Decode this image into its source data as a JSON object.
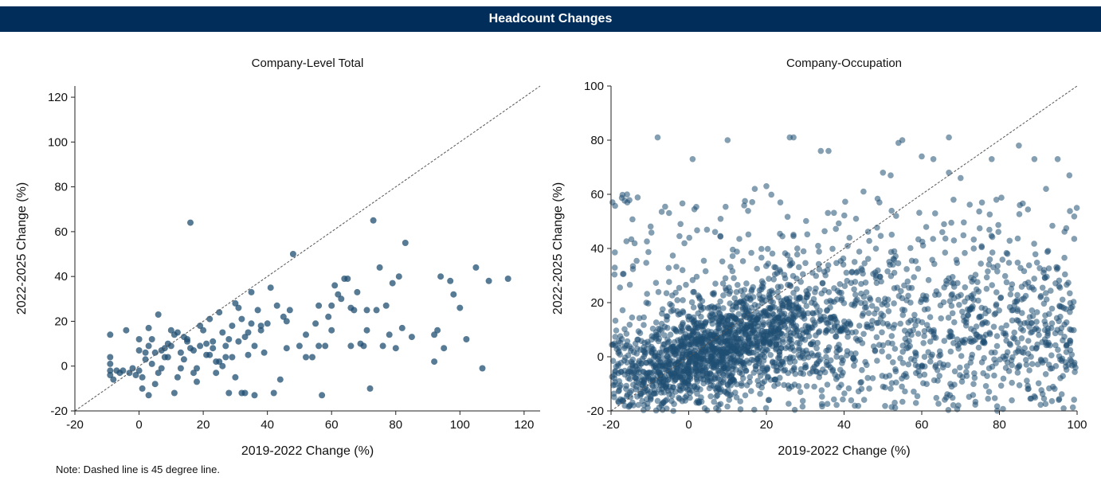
{
  "header": {
    "title": "Headcount Changes"
  },
  "note": "Note: Dashed line is 45 degree line.",
  "colors": {
    "banner": "#002D5A",
    "points": "#1F4E72",
    "ref_line": "#555555"
  },
  "chart_data": [
    {
      "type": "scatter",
      "title": "Company-Level Total",
      "xlabel": "2019-2022 Change (%)",
      "ylabel": "2022-2025 Change (%)",
      "xlim": [
        -20,
        125
      ],
      "ylim": [
        -20,
        125
      ],
      "xticks": [
        -20,
        0,
        20,
        40,
        60,
        80,
        100,
        120
      ],
      "yticks": [
        -20,
        0,
        20,
        40,
        60,
        80,
        100,
        120
      ],
      "reference_line": "45-degree dashed",
      "grid": false,
      "points": [
        [
          -9,
          14
        ],
        [
          -9,
          4
        ],
        [
          -9,
          1
        ],
        [
          -9,
          -2
        ],
        [
          -9,
          -4
        ],
        [
          -8,
          -6
        ],
        [
          -7,
          -2
        ],
        [
          -6,
          -3
        ],
        [
          -5,
          -2
        ],
        [
          -4,
          16
        ],
        [
          -3,
          -3
        ],
        [
          -2,
          -1
        ],
        [
          -1,
          -4
        ],
        [
          0,
          -2
        ],
        [
          1,
          -5
        ],
        [
          2,
          3
        ],
        [
          3,
          17
        ],
        [
          4,
          12
        ],
        [
          5,
          -8
        ],
        [
          6,
          23
        ],
        [
          7,
          7
        ],
        [
          8,
          8
        ],
        [
          9,
          10
        ],
        [
          10,
          16
        ],
        [
          11,
          14
        ],
        [
          12,
          15
        ],
        [
          13,
          6
        ],
        [
          14,
          3
        ],
        [
          15,
          11
        ],
        [
          16,
          64
        ],
        [
          17,
          7
        ],
        [
          18,
          -1
        ],
        [
          19,
          18
        ],
        [
          20,
          16
        ],
        [
          21,
          10
        ],
        [
          22,
          21
        ],
        [
          23,
          8
        ],
        [
          24,
          -3
        ],
        [
          25,
          24
        ],
        [
          26,
          15
        ],
        [
          27,
          4
        ],
        [
          28,
          -12
        ],
        [
          29,
          18
        ],
        [
          30,
          28
        ],
        [
          31,
          26
        ],
        [
          32,
          21
        ],
        [
          33,
          13
        ],
        [
          34,
          15
        ],
        [
          35,
          33
        ],
        [
          36,
          9
        ],
        [
          37,
          25
        ],
        [
          38,
          18
        ],
        [
          39,
          6
        ],
        [
          40,
          19
        ],
        [
          41,
          35
        ],
        [
          42,
          -12
        ],
        [
          43,
          27
        ],
        [
          44,
          -6
        ],
        [
          45,
          22
        ],
        [
          46,
          8
        ],
        [
          47,
          25
        ],
        [
          48,
          50
        ],
        [
          50,
          9
        ],
        [
          52,
          14
        ],
        [
          54,
          4
        ],
        [
          55,
          19
        ],
        [
          56,
          27
        ],
        [
          57,
          -13
        ],
        [
          58,
          9
        ],
        [
          59,
          22
        ],
        [
          60,
          27
        ],
        [
          61,
          36
        ],
        [
          62,
          32
        ],
        [
          63,
          30
        ],
        [
          64,
          39
        ],
        [
          65,
          39
        ],
        [
          66,
          9
        ],
        [
          67,
          25
        ],
        [
          68,
          33
        ],
        [
          69,
          10
        ],
        [
          70,
          9
        ],
        [
          71,
          25
        ],
        [
          72,
          -10
        ],
        [
          73,
          65
        ],
        [
          74,
          25
        ],
        [
          75,
          44
        ],
        [
          76,
          9
        ],
        [
          77,
          27
        ],
        [
          78,
          14
        ],
        [
          79,
          37
        ],
        [
          80,
          8
        ],
        [
          81,
          40
        ],
        [
          82,
          17
        ],
        [
          83,
          55
        ],
        [
          85,
          13
        ],
        [
          92,
          2
        ],
        [
          93,
          16
        ],
        [
          94,
          40
        ],
        [
          95,
          8
        ],
        [
          97,
          38
        ],
        [
          98,
          32
        ],
        [
          100,
          26
        ],
        [
          102,
          12
        ],
        [
          105,
          44
        ],
        [
          107,
          -1
        ],
        [
          109,
          38
        ],
        [
          115,
          39
        ],
        [
          0,
          12
        ],
        [
          2,
          6
        ],
        [
          4,
          1
        ],
        [
          6,
          -3
        ],
        [
          8,
          4
        ],
        [
          10,
          9
        ],
        [
          12,
          -5
        ],
        [
          14,
          13
        ],
        [
          18,
          -7
        ],
        [
          22,
          5
        ],
        [
          26,
          0
        ],
        [
          30,
          -5
        ],
        [
          34,
          5
        ],
        [
          38,
          16
        ],
        [
          1,
          -10
        ],
        [
          3,
          9
        ],
        [
          5,
          6
        ],
        [
          7,
          -1
        ],
        [
          9,
          4
        ],
        [
          13,
          -1
        ],
        [
          15,
          12
        ],
        [
          17,
          -3
        ],
        [
          19,
          9
        ],
        [
          21,
          5
        ],
        [
          23,
          11
        ],
        [
          25,
          2
        ],
        [
          27,
          9
        ],
        [
          29,
          4
        ],
        [
          31,
          11
        ],
        [
          33,
          -12
        ],
        [
          35,
          19
        ],
        [
          36,
          -13
        ],
        [
          3,
          -13
        ],
        [
          0,
          7
        ],
        [
          11,
          -12
        ],
        [
          16,
          8
        ],
        [
          24,
          2
        ],
        [
          28,
          12
        ],
        [
          32,
          -12
        ],
        [
          46,
          20
        ],
        [
          52,
          4
        ],
        [
          56,
          9
        ],
        [
          60,
          16
        ],
        [
          66,
          26
        ],
        [
          71,
          16
        ],
        [
          92,
          14
        ]
      ]
    },
    {
      "type": "scatter",
      "title": "Company-Occupation",
      "xlabel": "2019-2022 Change (%)",
      "ylabel": "2022-2025 Change (%)",
      "xlim": [
        -20,
        100
      ],
      "ylim": [
        -20,
        100
      ],
      "xticks": [
        -20,
        0,
        20,
        40,
        60,
        80,
        100
      ],
      "yticks": [
        -20,
        0,
        20,
        40,
        60,
        80,
        100
      ],
      "reference_line": "45-degree dashed",
      "grid": false,
      "point_count": 2600,
      "sample_points": [
        [
          -8,
          81
        ],
        [
          10,
          80
        ],
        [
          26,
          81
        ],
        [
          27,
          81
        ],
        [
          67,
          81
        ],
        [
          54,
          79
        ],
        [
          55,
          80
        ],
        [
          85,
          78
        ],
        [
          34,
          76
        ],
        [
          36,
          76
        ],
        [
          60,
          74
        ],
        [
          63,
          73
        ],
        [
          78,
          73
        ],
        [
          89,
          73
        ],
        [
          1,
          73
        ],
        [
          17,
          62
        ],
        [
          20,
          63
        ],
        [
          45,
          61
        ],
        [
          50,
          68
        ],
        [
          52,
          67
        ],
        [
          67,
          68
        ],
        [
          70,
          66
        ],
        [
          92,
          62
        ],
        [
          95,
          73
        ],
        [
          98,
          67
        ]
      ]
    }
  ]
}
